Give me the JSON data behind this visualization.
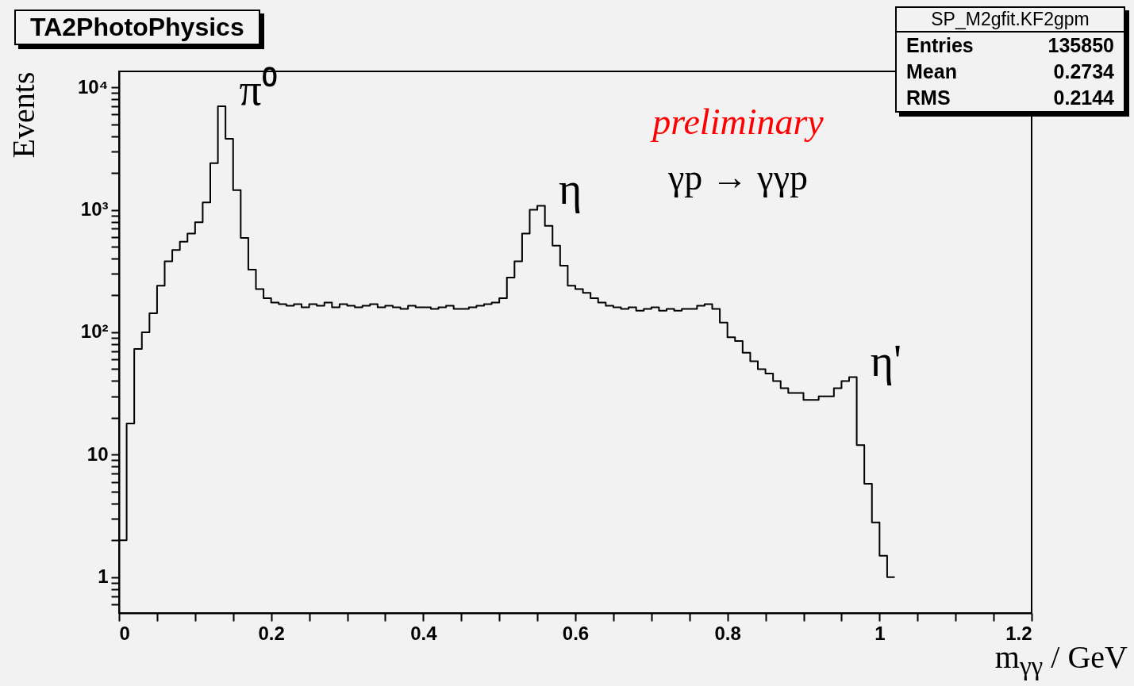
{
  "chart_data": {
    "type": "histogram",
    "title": "TA2PhotoPhysics",
    "xlabel": "m$_{γγ}$ / GeV",
    "ylabel": "Events",
    "log": true,
    "annotations": [
      "SP_M2gfit.KF2gpm",
      "Entries 135850",
      "Mean 0.2734",
      "RMS 0.2144",
      "preliminary",
      "γp → γγp",
      {
        "text": "π⁰",
        "x": 0.135,
        "y": 7000
      },
      {
        "text": "η",
        "x": 0.555,
        "y": 1080
      },
      {
        "text": "η'",
        "x": 0.965,
        "y": 43
      }
    ],
    "bins": [
      0,
      0.01,
      0.02,
      0.03,
      0.04,
      0.05,
      0.06,
      0.07,
      0.08,
      0.09,
      0.1,
      0.11,
      0.12,
      0.13,
      0.14,
      0.15,
      0.16,
      0.17,
      0.18,
      0.19,
      0.2,
      0.21,
      0.22,
      0.23,
      0.24,
      0.25,
      0.26,
      0.27,
      0.28,
      0.29,
      0.3,
      0.31,
      0.32,
      0.33,
      0.34,
      0.35,
      0.36,
      0.37,
      0.38,
      0.39,
      0.4,
      0.41,
      0.42,
      0.43,
      0.44,
      0.45,
      0.46,
      0.47,
      0.48,
      0.49,
      0.5,
      0.51,
      0.52,
      0.53,
      0.54,
      0.55,
      0.56,
      0.57,
      0.58,
      0.59,
      0.6,
      0.61,
      0.62,
      0.63,
      0.64,
      0.65,
      0.66,
      0.67,
      0.68,
      0.69,
      0.7,
      0.71,
      0.72,
      0.73,
      0.74,
      0.75,
      0.76,
      0.77,
      0.78,
      0.79,
      0.8,
      0.81,
      0.82,
      0.83,
      0.84,
      0.85,
      0.86,
      0.87,
      0.88,
      0.89,
      0.9,
      0.91,
      0.92,
      0.93,
      0.94,
      0.95,
      0.96,
      0.97,
      0.98,
      0.99,
      1,
      1.01,
      1.02
    ],
    "values": [
      2,
      18,
      73,
      100,
      143,
      240,
      380,
      470,
      550,
      640,
      790,
      1150,
      2400,
      7000,
      3800,
      1450,
      590,
      325,
      225,
      190,
      175,
      170,
      165,
      170,
      160,
      170,
      165,
      175,
      160,
      170,
      165,
      160,
      165,
      170,
      160,
      165,
      160,
      155,
      165,
      160,
      160,
      155,
      160,
      165,
      155,
      155,
      160,
      165,
      170,
      175,
      190,
      280,
      380,
      640,
      1000,
      1080,
      740,
      510,
      350,
      240,
      225,
      210,
      190,
      175,
      165,
      160,
      155,
      160,
      150,
      155,
      160,
      150,
      155,
      150,
      155,
      155,
      165,
      170,
      155,
      120,
      91,
      85,
      68,
      58,
      50,
      46,
      40,
      35,
      32,
      32,
      28,
      28,
      30,
      30,
      35,
      40,
      43,
      12,
      5.8,
      2.8,
      1.5,
      1
    ],
    "xlim": [
      0,
      1.2
    ],
    "ylim": [
      0.51,
      13500
    ],
    "xticks": [
      0,
      {
        "value": 0.05,
        "label": null
      },
      0.2,
      {
        "value": 0.1,
        "label": null
      },
      {
        "value": 0.15,
        "label": null
      },
      {
        "value": 0.25,
        "label": null
      },
      {
        "value": 0.3,
        "label": null
      },
      {
        "value": 0.35,
        "label": null
      },
      0.4,
      {
        "value": 0.45,
        "label": null
      },
      {
        "value": 0.5,
        "label": null
      },
      {
        "value": 0.55,
        "label": null
      },
      0.6,
      {
        "value": 0.65,
        "label": null
      },
      {
        "value": 0.7,
        "label": null
      },
      {
        "value": 0.75,
        "label": null
      },
      0.8,
      {
        "value": 0.85,
        "label": null
      },
      {
        "value": 0.9,
        "label": null
      },
      {
        "value": 0.95,
        "label": null
      },
      1,
      {
        "value": 1.05,
        "label": null
      },
      {
        "value": 1.1,
        "label": null
      },
      {
        "value": 1.15,
        "label": null
      },
      1.2
    ],
    "yticks": [
      {
        "value": 0.6,
        "label": null
      },
      {
        "value": 0.7,
        "label": null
      },
      {
        "value": 0.8,
        "label": null
      },
      {
        "value": 0.9,
        "label": null
      },
      1,
      {
        "value": 2,
        "label": null
      },
      {
        "value": 3,
        "label": null
      },
      {
        "value": 4,
        "label": null
      },
      {
        "value": 5,
        "label": null
      },
      {
        "value": 6,
        "label": null
      },
      {
        "value": 7,
        "label": null
      },
      {
        "value": 8,
        "label": null
      },
      {
        "value": 9,
        "label": null
      },
      10,
      {
        "value": 20,
        "label": null
      },
      {
        "value": 30,
        "label": null
      },
      {
        "value": 40,
        "label": null
      },
      {
        "value": 50,
        "label": null
      },
      {
        "value": 60,
        "label": null
      },
      {
        "value": 70,
        "label": null
      },
      {
        "value": 80,
        "label": null
      },
      {
        "value": 90,
        "label": null
      },
      {
        "value": 100,
        "label": "10²"
      },
      {
        "value": 200,
        "label": null
      },
      {
        "value": 300,
        "label": null
      },
      {
        "value": 400,
        "label": null
      },
      {
        "value": 500,
        "label": null
      },
      {
        "value": 600,
        "label": null
      },
      {
        "value": 700,
        "label": null
      },
      {
        "value": 800,
        "label": null
      },
      {
        "value": 900,
        "label": null
      },
      {
        "value": 1000,
        "label": "10³"
      },
      {
        "value": 2000,
        "label": null
      },
      {
        "value": 3000,
        "label": null
      },
      {
        "value": 4000,
        "label": null
      },
      {
        "value": 5000,
        "label": null
      },
      {
        "value": 6000,
        "label": null
      },
      {
        "value": 7000,
        "label": null
      },
      {
        "value": 8000,
        "label": null
      },
      {
        "value": 9000,
        "label": null
      },
      {
        "value": 10000,
        "label": "10⁴"
      }
    ]
  }
}
